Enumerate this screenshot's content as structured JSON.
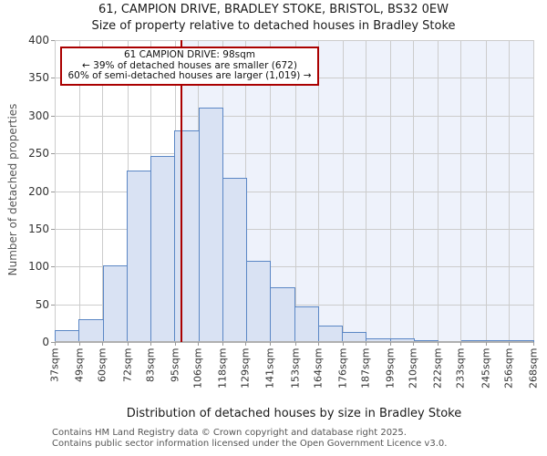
{
  "titles": {
    "line1": "61, CAMPION DRIVE, BRADLEY STOKE, BRISTOL, BS32 0EW",
    "line2": "Size of property relative to detached houses in Bradley Stoke"
  },
  "annotation": {
    "line1": "61 CAMPION DRIVE: 98sqm",
    "line2": "← 39% of detached houses are smaller (672)",
    "line3": "60% of semi-detached houses are larger (1,019) →"
  },
  "footer": {
    "line1": "Contains HM Land Registry data © Crown copyright and database right 2025.",
    "line2": "Contains public sector information licensed under the Open Government Licence v3.0."
  },
  "chart_data": {
    "type": "bar",
    "title": "61, CAMPION DRIVE, BRADLEY STOKE, BRISTOL, BS32 0EW",
    "subtitle": "Size of property relative to detached houses in Bradley Stoke",
    "xlabel": "Distribution of detached houses by size in Bradley Stoke",
    "ylabel": "Number of detached properties",
    "ylim": [
      0,
      400
    ],
    "ytick_step": 50,
    "grid": true,
    "bin_edges_sqm": [
      37,
      49,
      60,
      72,
      83,
      95,
      106,
      118,
      129,
      141,
      153,
      164,
      176,
      187,
      199,
      210,
      222,
      233,
      245,
      256,
      268
    ],
    "bin_edge_labels": [
      "37sqm",
      "49sqm",
      "60sqm",
      "72sqm",
      "83sqm",
      "95sqm",
      "106sqm",
      "118sqm",
      "129sqm",
      "141sqm",
      "153sqm",
      "164sqm",
      "176sqm",
      "187sqm",
      "199sqm",
      "210sqm",
      "222sqm",
      "233sqm",
      "245sqm",
      "256sqm",
      "268sqm"
    ],
    "counts": [
      16,
      30,
      101,
      227,
      247,
      280,
      310,
      217,
      108,
      73,
      47,
      22,
      13,
      5,
      5,
      3,
      0,
      2,
      2,
      1
    ],
    "marker": {
      "value_sqm": 98,
      "color": "#aa0000"
    },
    "shade_region": {
      "from_sqm": 98,
      "to_sqm": 268,
      "color": "#eef2fb"
    },
    "colors": {
      "bar_fill": "#d9e2f3",
      "bar_edge": "#5b87c5",
      "grid": "#cccccc",
      "axis": "#b0b0b0",
      "tick": "#999999"
    }
  }
}
